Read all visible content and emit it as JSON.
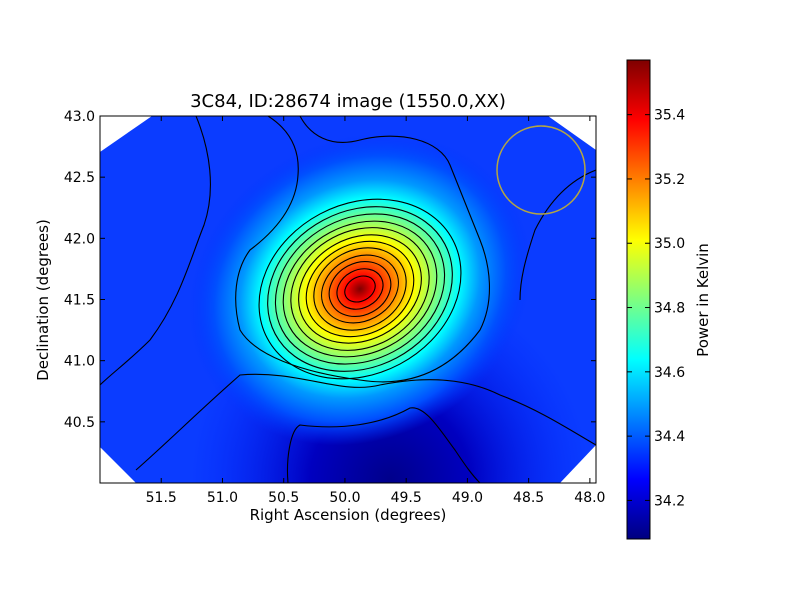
{
  "chart_data": {
    "type": "heatmap",
    "title": "3C84, ID:28674 image (1550.0,XX)",
    "xlabel": "Right Ascension (degrees)",
    "ylabel": "Declination (degrees)",
    "xlim": [
      52.0,
      47.95
    ],
    "ylim": [
      40.0,
      43.0
    ],
    "x_ticks": [
      "51.5",
      "51.0",
      "50.5",
      "50.0",
      "49.5",
      "49.0",
      "48.5",
      "48.0"
    ],
    "x_tick_values": [
      51.5,
      51.0,
      50.5,
      50.0,
      49.5,
      49.0,
      48.5,
      48.0
    ],
    "y_ticks": [
      "40.5",
      "41.0",
      "41.5",
      "42.0",
      "42.5",
      "43.0"
    ],
    "y_tick_values": [
      40.5,
      41.0,
      41.5,
      42.0,
      42.5,
      43.0
    ],
    "colormap": "jet",
    "colorbar": {
      "label": "Power in Kelvin",
      "range": [
        34.08,
        35.57
      ],
      "ticks": [
        "34.2",
        "34.4",
        "34.6",
        "34.8",
        "35.0",
        "35.2",
        "35.4"
      ],
      "tick_values": [
        34.2,
        34.4,
        34.6,
        34.8,
        35.0,
        35.2,
        35.4
      ]
    },
    "peak": {
      "ra": 49.88,
      "dec": 41.6,
      "value": 35.57
    },
    "beam_circle": {
      "ra": 48.35,
      "dec": 42.57,
      "radius_deg": 0.36,
      "color": "#b5a642"
    },
    "contour_color": "#000000"
  }
}
